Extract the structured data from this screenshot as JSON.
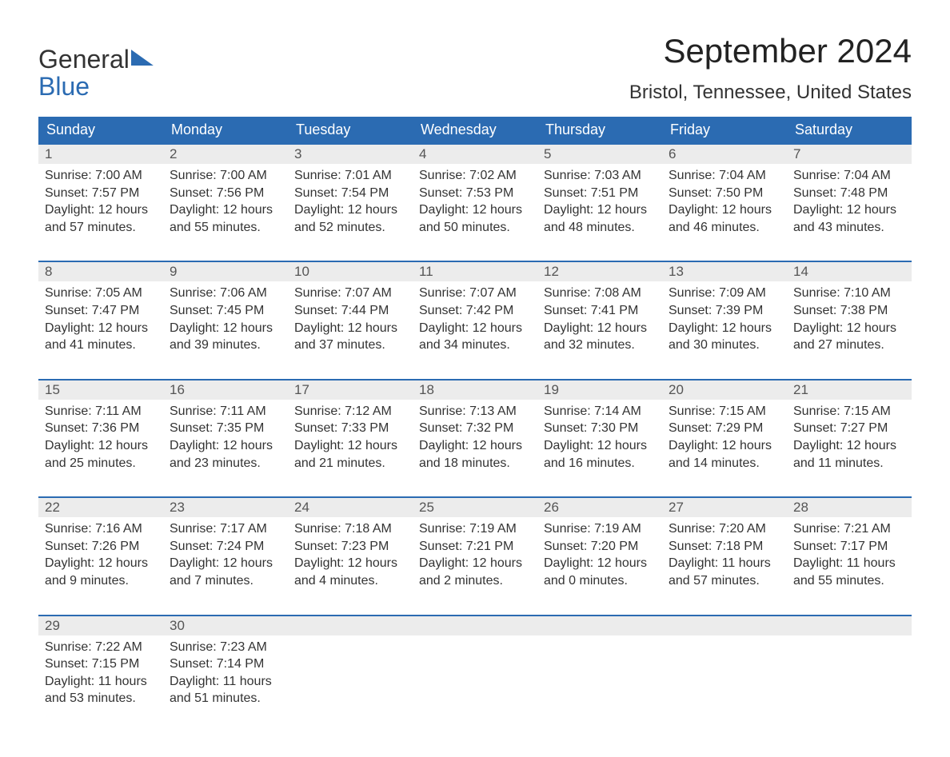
{
  "logo": {
    "line1": "General",
    "line2": "Blue"
  },
  "title": "September 2024",
  "location": "Bristol, Tennessee, United States",
  "colors": {
    "brand_blue": "#2b6bb2",
    "daynum_bg": "#ececec",
    "text": "#333333",
    "background": "#ffffff"
  },
  "typography": {
    "title_fontsize_pt": 32,
    "location_fontsize_pt": 18,
    "header_fontsize_pt": 14,
    "body_fontsize_pt": 12
  },
  "weekdays": [
    "Sunday",
    "Monday",
    "Tuesday",
    "Wednesday",
    "Thursday",
    "Friday",
    "Saturday"
  ],
  "weeks": [
    [
      {
        "day": "1",
        "sunrise": "Sunrise: 7:00 AM",
        "sunset": "Sunset: 7:57 PM",
        "d1": "Daylight: 12 hours",
        "d2": "and 57 minutes."
      },
      {
        "day": "2",
        "sunrise": "Sunrise: 7:00 AM",
        "sunset": "Sunset: 7:56 PM",
        "d1": "Daylight: 12 hours",
        "d2": "and 55 minutes."
      },
      {
        "day": "3",
        "sunrise": "Sunrise: 7:01 AM",
        "sunset": "Sunset: 7:54 PM",
        "d1": "Daylight: 12 hours",
        "d2": "and 52 minutes."
      },
      {
        "day": "4",
        "sunrise": "Sunrise: 7:02 AM",
        "sunset": "Sunset: 7:53 PM",
        "d1": "Daylight: 12 hours",
        "d2": "and 50 minutes."
      },
      {
        "day": "5",
        "sunrise": "Sunrise: 7:03 AM",
        "sunset": "Sunset: 7:51 PM",
        "d1": "Daylight: 12 hours",
        "d2": "and 48 minutes."
      },
      {
        "day": "6",
        "sunrise": "Sunrise: 7:04 AM",
        "sunset": "Sunset: 7:50 PM",
        "d1": "Daylight: 12 hours",
        "d2": "and 46 minutes."
      },
      {
        "day": "7",
        "sunrise": "Sunrise: 7:04 AM",
        "sunset": "Sunset: 7:48 PM",
        "d1": "Daylight: 12 hours",
        "d2": "and 43 minutes."
      }
    ],
    [
      {
        "day": "8",
        "sunrise": "Sunrise: 7:05 AM",
        "sunset": "Sunset: 7:47 PM",
        "d1": "Daylight: 12 hours",
        "d2": "and 41 minutes."
      },
      {
        "day": "9",
        "sunrise": "Sunrise: 7:06 AM",
        "sunset": "Sunset: 7:45 PM",
        "d1": "Daylight: 12 hours",
        "d2": "and 39 minutes."
      },
      {
        "day": "10",
        "sunrise": "Sunrise: 7:07 AM",
        "sunset": "Sunset: 7:44 PM",
        "d1": "Daylight: 12 hours",
        "d2": "and 37 minutes."
      },
      {
        "day": "11",
        "sunrise": "Sunrise: 7:07 AM",
        "sunset": "Sunset: 7:42 PM",
        "d1": "Daylight: 12 hours",
        "d2": "and 34 minutes."
      },
      {
        "day": "12",
        "sunrise": "Sunrise: 7:08 AM",
        "sunset": "Sunset: 7:41 PM",
        "d1": "Daylight: 12 hours",
        "d2": "and 32 minutes."
      },
      {
        "day": "13",
        "sunrise": "Sunrise: 7:09 AM",
        "sunset": "Sunset: 7:39 PM",
        "d1": "Daylight: 12 hours",
        "d2": "and 30 minutes."
      },
      {
        "day": "14",
        "sunrise": "Sunrise: 7:10 AM",
        "sunset": "Sunset: 7:38 PM",
        "d1": "Daylight: 12 hours",
        "d2": "and 27 minutes."
      }
    ],
    [
      {
        "day": "15",
        "sunrise": "Sunrise: 7:11 AM",
        "sunset": "Sunset: 7:36 PM",
        "d1": "Daylight: 12 hours",
        "d2": "and 25 minutes."
      },
      {
        "day": "16",
        "sunrise": "Sunrise: 7:11 AM",
        "sunset": "Sunset: 7:35 PM",
        "d1": "Daylight: 12 hours",
        "d2": "and 23 minutes."
      },
      {
        "day": "17",
        "sunrise": "Sunrise: 7:12 AM",
        "sunset": "Sunset: 7:33 PM",
        "d1": "Daylight: 12 hours",
        "d2": "and 21 minutes."
      },
      {
        "day": "18",
        "sunrise": "Sunrise: 7:13 AM",
        "sunset": "Sunset: 7:32 PM",
        "d1": "Daylight: 12 hours",
        "d2": "and 18 minutes."
      },
      {
        "day": "19",
        "sunrise": "Sunrise: 7:14 AM",
        "sunset": "Sunset: 7:30 PM",
        "d1": "Daylight: 12 hours",
        "d2": "and 16 minutes."
      },
      {
        "day": "20",
        "sunrise": "Sunrise: 7:15 AM",
        "sunset": "Sunset: 7:29 PM",
        "d1": "Daylight: 12 hours",
        "d2": "and 14 minutes."
      },
      {
        "day": "21",
        "sunrise": "Sunrise: 7:15 AM",
        "sunset": "Sunset: 7:27 PM",
        "d1": "Daylight: 12 hours",
        "d2": "and 11 minutes."
      }
    ],
    [
      {
        "day": "22",
        "sunrise": "Sunrise: 7:16 AM",
        "sunset": "Sunset: 7:26 PM",
        "d1": "Daylight: 12 hours",
        "d2": "and 9 minutes."
      },
      {
        "day": "23",
        "sunrise": "Sunrise: 7:17 AM",
        "sunset": "Sunset: 7:24 PM",
        "d1": "Daylight: 12 hours",
        "d2": "and 7 minutes."
      },
      {
        "day": "24",
        "sunrise": "Sunrise: 7:18 AM",
        "sunset": "Sunset: 7:23 PM",
        "d1": "Daylight: 12 hours",
        "d2": "and 4 minutes."
      },
      {
        "day": "25",
        "sunrise": "Sunrise: 7:19 AM",
        "sunset": "Sunset: 7:21 PM",
        "d1": "Daylight: 12 hours",
        "d2": "and 2 minutes."
      },
      {
        "day": "26",
        "sunrise": "Sunrise: 7:19 AM",
        "sunset": "Sunset: 7:20 PM",
        "d1": "Daylight: 12 hours",
        "d2": "and 0 minutes."
      },
      {
        "day": "27",
        "sunrise": "Sunrise: 7:20 AM",
        "sunset": "Sunset: 7:18 PM",
        "d1": "Daylight: 11 hours",
        "d2": "and 57 minutes."
      },
      {
        "day": "28",
        "sunrise": "Sunrise: 7:21 AM",
        "sunset": "Sunset: 7:17 PM",
        "d1": "Daylight: 11 hours",
        "d2": "and 55 minutes."
      }
    ],
    [
      {
        "day": "29",
        "sunrise": "Sunrise: 7:22 AM",
        "sunset": "Sunset: 7:15 PM",
        "d1": "Daylight: 11 hours",
        "d2": "and 53 minutes."
      },
      {
        "day": "30",
        "sunrise": "Sunrise: 7:23 AM",
        "sunset": "Sunset: 7:14 PM",
        "d1": "Daylight: 11 hours",
        "d2": "and 51 minutes."
      },
      null,
      null,
      null,
      null,
      null
    ]
  ]
}
